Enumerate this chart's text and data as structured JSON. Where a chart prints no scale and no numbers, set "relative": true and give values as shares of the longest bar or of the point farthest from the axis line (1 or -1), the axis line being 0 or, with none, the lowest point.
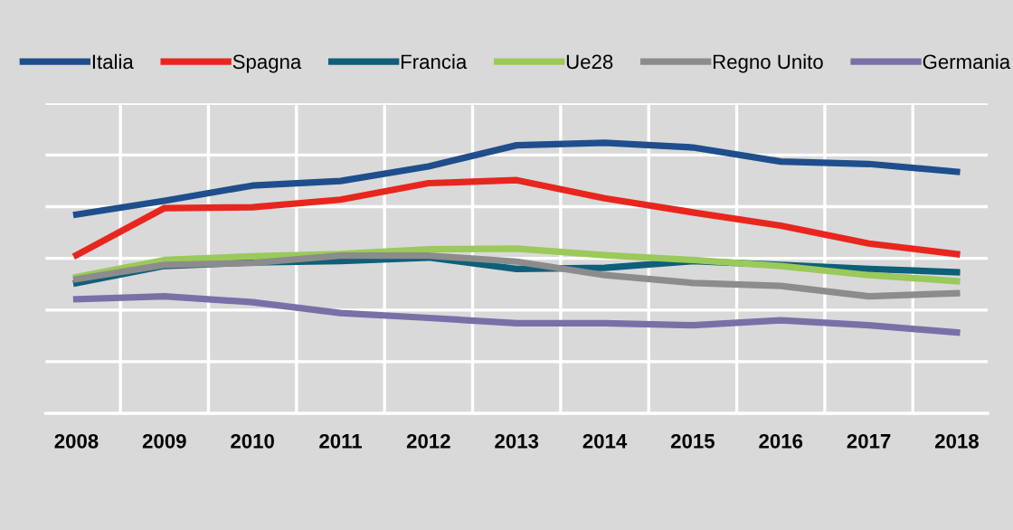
{
  "chart_data": {
    "type": "line",
    "relative": true,
    "grid": true,
    "legend": "top",
    "marker": "none",
    "line_style": "solid",
    "categories": [
      "2008",
      "2009",
      "2010",
      "2011",
      "2012",
      "2013",
      "2014",
      "2015",
      "2016",
      "2017",
      "2018"
    ],
    "series": [
      {
        "name": "Italia",
        "color": "#1f4e8c",
        "values": [
          0.735,
          0.786,
          0.842,
          0.859,
          0.913,
          0.991,
          1,
          0.983,
          0.931,
          0.922,
          0.893
        ]
      },
      {
        "name": "Spagna",
        "color": "#e8261e",
        "values": [
          0.585,
          0.759,
          0.762,
          0.79,
          0.851,
          0.862,
          0.795,
          0.743,
          0.694,
          0.628,
          0.589
        ]
      },
      {
        "name": "Francia",
        "color": "#0e5f7a",
        "values": [
          0.482,
          0.545,
          0.558,
          0.563,
          0.576,
          0.534,
          0.538,
          0.563,
          0.549,
          0.534,
          0.522
        ]
      },
      {
        "name": "Ue28",
        "color": "#9bc95a",
        "values": [
          0.504,
          0.567,
          0.581,
          0.589,
          0.607,
          0.609,
          0.585,
          0.567,
          0.545,
          0.511,
          0.489
        ]
      },
      {
        "name": "Regno Unito",
        "color": "#8c8c8c",
        "values": [
          0.496,
          0.549,
          0.556,
          0.583,
          0.583,
          0.561,
          0.511,
          0.482,
          0.471,
          0.433,
          0.444
        ]
      },
      {
        "name": "Germania",
        "color": "#7b6fa8",
        "values": [
          0.422,
          0.433,
          0.411,
          0.371,
          0.353,
          0.333,
          0.333,
          0.326,
          0.344,
          0.326,
          0.299
        ]
      }
    ]
  }
}
